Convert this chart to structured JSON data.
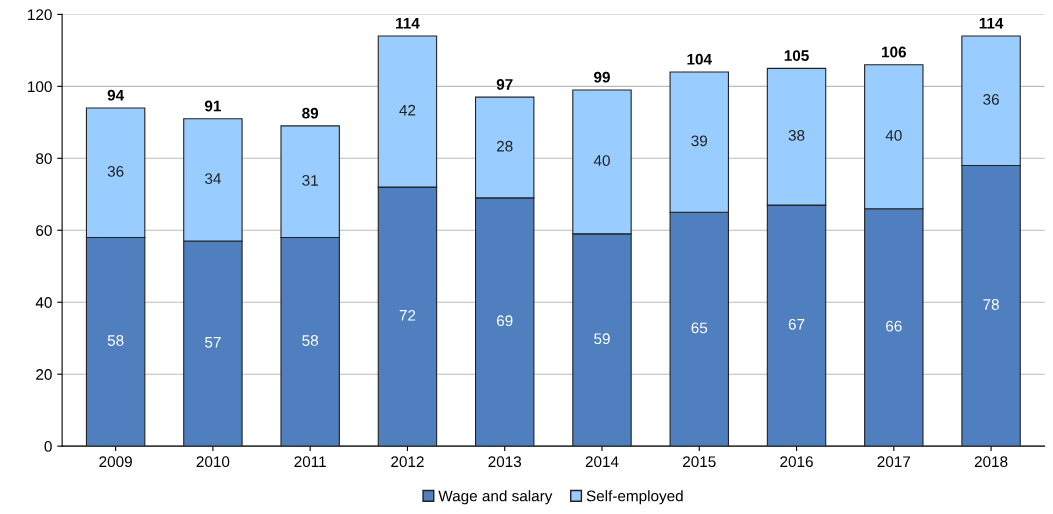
{
  "chart_data": {
    "type": "bar",
    "stacked": true,
    "categories": [
      "2009",
      "2010",
      "2011",
      "2012",
      "2013",
      "2014",
      "2015",
      "2016",
      "2017",
      "2018"
    ],
    "series": [
      {
        "name": "Wage and salary",
        "color": "#4f7fbf",
        "values": [
          58,
          57,
          58,
          72,
          69,
          59,
          65,
          67,
          66,
          78
        ]
      },
      {
        "name": "Self-employed",
        "color": "#99ccff",
        "values": [
          36,
          34,
          31,
          42,
          28,
          40,
          39,
          38,
          40,
          36
        ]
      }
    ],
    "totals": [
      "94",
      "91",
      "89",
      "114",
      "97",
      "99",
      "104",
      "105",
      "106",
      "114"
    ],
    "data_labels": true,
    "ylim": [
      0,
      120
    ],
    "yticks": [
      0,
      20,
      40,
      60,
      80,
      100,
      120
    ],
    "grid": "y",
    "legend": "bottom"
  }
}
